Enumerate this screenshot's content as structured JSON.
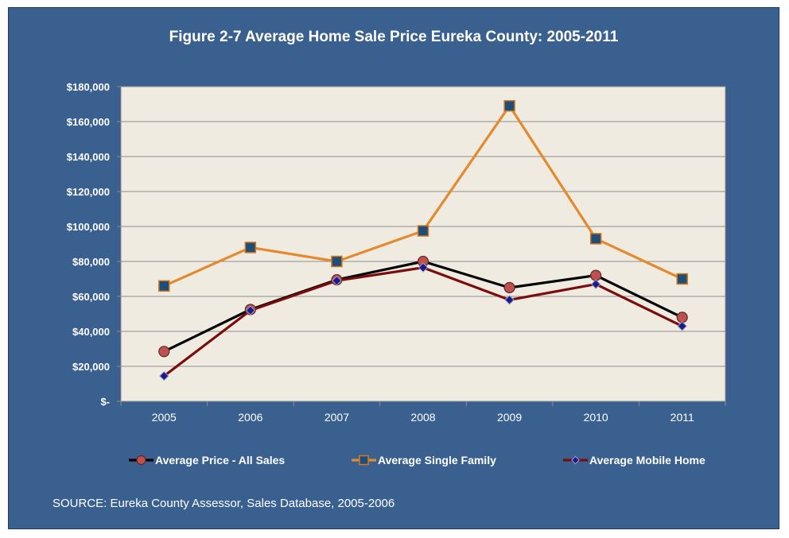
{
  "title": "Figure 2-7 Average Home Sale Price Eureka County: 2005-2011",
  "source": "SOURCE:  Eureka County Assessor, Sales Database, 2005-2006",
  "colors": {
    "background": "#3a6090",
    "plot_area": "#efebe0",
    "all_sales_line": "#000000",
    "all_sales_marker": "#c0504d",
    "single_family_line": "#e3892e",
    "single_family_marker": "#1f4e79",
    "mobile_home_line": "#7b0c0c",
    "mobile_home_marker": "#1a1a8c"
  },
  "chart_data": {
    "type": "line",
    "title": "Figure 2-7 Average Home Sale Price Eureka County: 2005-2011",
    "categories": [
      "2005",
      "2006",
      "2007",
      "2008",
      "2009",
      "2010",
      "2011"
    ],
    "ylim": [
      0,
      180000
    ],
    "y_ticks": [
      0,
      20000,
      40000,
      60000,
      80000,
      100000,
      120000,
      140000,
      160000,
      180000
    ],
    "y_tick_labels": [
      "$-",
      "$20,000",
      "$40,000",
      "$60,000",
      "$80,000",
      "$100,000",
      "$120,000",
      "$140,000",
      "$160,000",
      "$180,000"
    ],
    "grid": true,
    "legend_position": "bottom",
    "series": [
      {
        "name": "Average Price - All Sales",
        "marker": "circle",
        "values": [
          28500,
          52500,
          69500,
          80000,
          65000,
          72000,
          48000
        ]
      },
      {
        "name": "Average Single Family",
        "marker": "square",
        "values": [
          66000,
          88000,
          80000,
          97500,
          169000,
          93000,
          70000
        ]
      },
      {
        "name": "Average Mobile Home",
        "marker": "diamond",
        "values": [
          14500,
          52000,
          69000,
          76500,
          58000,
          67000,
          43000
        ]
      }
    ]
  }
}
